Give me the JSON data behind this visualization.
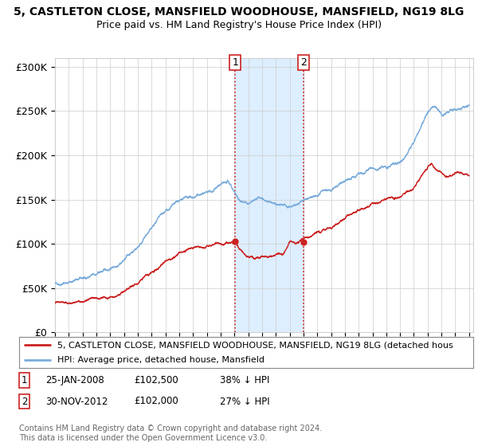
{
  "title1": "5, CASTLETON CLOSE, MANSFIELD WOODHOUSE, MANSFIELD, NG19 8LG",
  "title2": "Price paid vs. HM Land Registry's House Price Index (HPI)",
  "legend_line1": "5, CASTLETON CLOSE, MANSFIELD WOODHOUSE, MANSFIELD, NG19 8LG (detached hous",
  "legend_line2": "HPI: Average price, detached house, Mansfield",
  "transaction1_date": "25-JAN-2008",
  "transaction1_price": "£102,500",
  "transaction1_hpi": "38% ↓ HPI",
  "transaction2_date": "30-NOV-2012",
  "transaction2_price": "£102,000",
  "transaction2_hpi": "27% ↓ HPI",
  "footer": "Contains HM Land Registry data © Crown copyright and database right 2024.\nThis data is licensed under the Open Government Licence v3.0.",
  "hpi_color": "#7aaddc",
  "price_color": "#cc2222",
  "background_color": "#ffffff",
  "grid_color": "#cccccc",
  "highlight_color": "#ddeeff",
  "ylim": [
    0,
    310000
  ],
  "yticks": [
    0,
    50000,
    100000,
    150000,
    200000,
    250000,
    300000
  ],
  "ytick_labels": [
    "£0",
    "£50K",
    "£100K",
    "£150K",
    "£200K",
    "£250K",
    "£300K"
  ]
}
